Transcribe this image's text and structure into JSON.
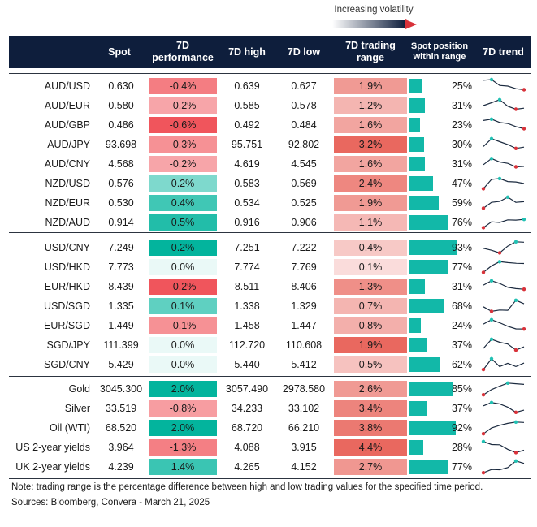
{
  "volatility_label": "Increasing volatility",
  "headers": {
    "spot": "Spot",
    "perf_line1": "7D",
    "perf_line2": "performance",
    "high": "7D high",
    "low": "7D low",
    "range_line1": "7D trading",
    "range_line2": "range",
    "pos_line1": "Spot position",
    "pos_line2": "within range",
    "trend": "7D trend"
  },
  "colors": {
    "header_bg": "#0e1e3c",
    "teal_bar": "#12b8a8",
    "trend_line": "#1b2a3f",
    "trend_high": "#22c1b3",
    "trend_low": "#d8323a",
    "pos_max": "#03b49d",
    "neg_max": "#f0555c"
  },
  "chart_data": {
    "type": "table",
    "groups": [
      [
        {
          "pair": "AUD/USD",
          "spot": "0.630",
          "perf": "-0.4%",
          "perf_v": -0.4,
          "high": "0.639",
          "low": "0.627",
          "range": "1.9%",
          "range_v": 1.9,
          "pos": "25%",
          "pos_v": 25,
          "trend": [
            0.95,
            1.0,
            0.55,
            0.5,
            0.3,
            0.22
          ]
        },
        {
          "pair": "AUD/EUR",
          "spot": "0.580",
          "perf": "-0.2%",
          "perf_v": -0.2,
          "high": "0.585",
          "low": "0.578",
          "range": "1.2%",
          "range_v": 1.2,
          "pos": "31%",
          "pos_v": 31,
          "trend": [
            0.5,
            0.72,
            0.95,
            0.45,
            0.22,
            0.3
          ]
        },
        {
          "pair": "AUD/GBP",
          "spot": "0.486",
          "perf": "-0.6%",
          "perf_v": -0.6,
          "high": "0.492",
          "low": "0.484",
          "range": "1.6%",
          "range_v": 1.6,
          "pos": "23%",
          "pos_v": 23,
          "trend": [
            0.85,
            0.95,
            0.7,
            0.62,
            0.38,
            0.22
          ]
        },
        {
          "pair": "AUD/JPY",
          "spot": "93.698",
          "perf": "-0.3%",
          "perf_v": -0.3,
          "high": "95.751",
          "low": "92.802",
          "range": "3.2%",
          "range_v": 3.2,
          "pos": "30%",
          "pos_v": 30,
          "trend": [
            0.35,
            0.95,
            0.72,
            0.5,
            0.2,
            0.3
          ]
        },
        {
          "pair": "AUD/CNY",
          "spot": "4.568",
          "perf": "-0.2%",
          "perf_v": -0.2,
          "high": "4.619",
          "low": "4.545",
          "range": "1.6%",
          "range_v": 1.6,
          "pos": "31%",
          "pos_v": 31,
          "trend": [
            0.45,
            0.92,
            0.65,
            0.55,
            0.28,
            0.32
          ]
        },
        {
          "pair": "NZD/USD",
          "spot": "0.576",
          "perf": "0.2%",
          "perf_v": 0.2,
          "high": "0.583",
          "low": "0.569",
          "range": "2.4%",
          "range_v": 2.4,
          "pos": "47%",
          "pos_v": 47,
          "trend": [
            0.1,
            0.82,
            0.88,
            0.65,
            0.62,
            0.5
          ]
        },
        {
          "pair": "NZD/EUR",
          "spot": "0.530",
          "perf": "0.4%",
          "perf_v": 0.4,
          "high": "0.534",
          "low": "0.525",
          "range": "1.9%",
          "range_v": 1.9,
          "pos": "59%",
          "pos_v": 59,
          "trend": [
            0.1,
            0.55,
            0.62,
            0.95,
            0.55,
            0.6
          ]
        },
        {
          "pair": "NZD/AUD",
          "spot": "0.914",
          "perf": "0.5%",
          "perf_v": 0.5,
          "high": "0.916",
          "low": "0.906",
          "range": "1.1%",
          "range_v": 1.1,
          "pos": "76%",
          "pos_v": 76,
          "trend": [
            0.1,
            0.55,
            0.5,
            0.7,
            0.68,
            0.74
          ]
        }
      ],
      [
        {
          "pair": "USD/CNY",
          "spot": "7.249",
          "perf": "0.2%",
          "perf_v": 0.2,
          "high": "7.251",
          "low": "7.222",
          "range": "0.4%",
          "range_v": 0.4,
          "pos": "93%",
          "pos_v": 93,
          "trend": [
            0.45,
            0.3,
            0.1,
            0.62,
            0.95,
            0.92
          ]
        },
        {
          "pair": "USD/HKD",
          "spot": "7.773",
          "perf": "0.0%",
          "perf_v": 0.0,
          "high": "7.774",
          "low": "7.769",
          "range": "0.1%",
          "range_v": 0.1,
          "pos": "77%",
          "pos_v": 77,
          "trend": [
            0.1,
            0.6,
            0.92,
            0.85,
            0.8,
            0.78
          ]
        },
        {
          "pair": "EUR/HKD",
          "spot": "8.439",
          "perf": "-0.2%",
          "perf_v": -0.2,
          "high": "8.511",
          "low": "8.406",
          "range": "1.3%",
          "range_v": 1.3,
          "pos": "31%",
          "pos_v": 31,
          "trend": [
            0.62,
            0.95,
            0.75,
            0.45,
            0.35,
            0.3
          ]
        },
        {
          "pair": "USD/SGD",
          "spot": "1.335",
          "perf": "0.1%",
          "perf_v": 0.1,
          "high": "1.338",
          "low": "1.329",
          "range": "0.7%",
          "range_v": 0.7,
          "pos": "68%",
          "pos_v": 68,
          "trend": [
            0.45,
            0.1,
            0.2,
            0.18,
            0.95,
            0.68
          ]
        },
        {
          "pair": "EUR/SGD",
          "spot": "1.449",
          "perf": "-0.1%",
          "perf_v": -0.1,
          "high": "1.458",
          "low": "1.447",
          "range": "0.8%",
          "range_v": 0.8,
          "pos": "24%",
          "pos_v": 24,
          "trend": [
            0.62,
            0.95,
            0.72,
            0.45,
            0.25,
            0.24
          ]
        },
        {
          "pair": "SGD/JPY",
          "spot": "111.399",
          "perf": "0.0%",
          "perf_v": 0.0,
          "high": "112.720",
          "low": "110.608",
          "range": "1.9%",
          "range_v": 1.9,
          "pos": "37%",
          "pos_v": 37,
          "trend": [
            0.25,
            0.95,
            0.72,
            0.58,
            0.12,
            0.37
          ]
        },
        {
          "pair": "SGD/CNY",
          "spot": "5.429",
          "perf": "0.0%",
          "perf_v": 0.0,
          "high": "5.440",
          "low": "5.412",
          "range": "0.5%",
          "range_v": 0.5,
          "pos": "62%",
          "pos_v": 62,
          "trend": [
            0.12,
            0.95,
            0.35,
            0.6,
            0.35,
            0.62
          ]
        }
      ],
      [
        {
          "pair": "Gold",
          "spot": "3045.300",
          "perf": "2.0%",
          "perf_v": 2.0,
          "high": "3057.490",
          "low": "2978.580",
          "range": "2.6%",
          "range_v": 2.6,
          "pos": "85%",
          "pos_v": 85,
          "trend": [
            0.05,
            0.45,
            0.72,
            0.95,
            0.9,
            0.85
          ]
        },
        {
          "pair": "Silver",
          "spot": "33.519",
          "perf": "-0.8%",
          "perf_v": -0.8,
          "high": "34.233",
          "low": "33.102",
          "range": "3.4%",
          "range_v": 3.4,
          "pos": "37%",
          "pos_v": 37,
          "trend": [
            0.7,
            0.95,
            0.85,
            0.6,
            0.2,
            0.37
          ]
        },
        {
          "pair": "Oil (WTI)",
          "spot": "68.520",
          "perf": "2.0%",
          "perf_v": 2.0,
          "high": "68.720",
          "low": "66.210",
          "range": "3.8%",
          "range_v": 3.8,
          "pos": "92%",
          "pos_v": 92,
          "trend": [
            0.05,
            0.5,
            0.7,
            0.85,
            0.95,
            0.92
          ]
        },
        {
          "pair": "US 2-year yields",
          "spot": "3.964",
          "perf": "-1.3%",
          "perf_v": -1.3,
          "high": "4.088",
          "low": "3.915",
          "range": "4.4%",
          "range_v": 4.4,
          "pos": "28%",
          "pos_v": 28,
          "trend": [
            0.95,
            0.72,
            0.7,
            0.35,
            0.1,
            0.28
          ]
        },
        {
          "pair": "UK 2-year yields",
          "spot": "4.239",
          "perf": "1.4%",
          "perf_v": 1.4,
          "high": "4.265",
          "low": "4.152",
          "range": "2.7%",
          "range_v": 2.7,
          "pos": "77%",
          "pos_v": 77,
          "trend": [
            0.05,
            0.3,
            0.28,
            0.45,
            0.95,
            0.77
          ]
        }
      ]
    ]
  },
  "notes": {
    "note": "Note: trading range is the percentage difference between high and low trading values for the specified time period.",
    "sources": "Sources: Bloomberg, Convera - March 21, 2025"
  }
}
